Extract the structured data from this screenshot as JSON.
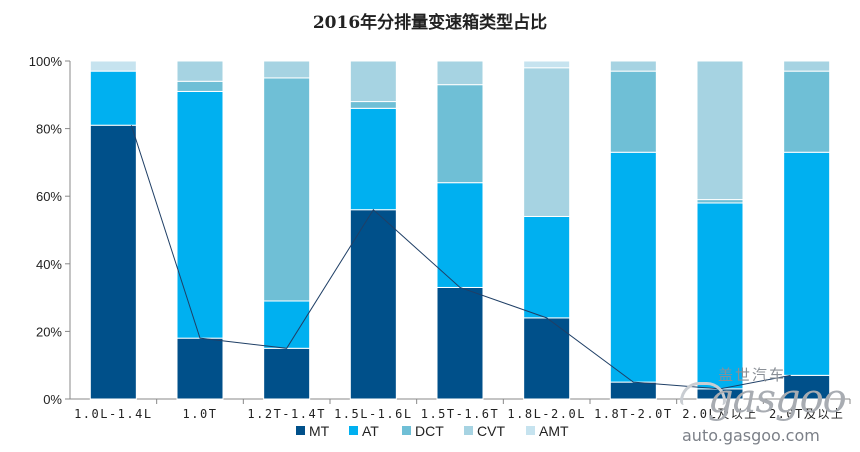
{
  "chart_data": {
    "type": "bar",
    "stacked": true,
    "title": "2016年分排量变速箱类型占比",
    "categories": [
      "1.0L-1.4L",
      "1.0T",
      "1.2T-1.4T",
      "1.5L-1.6L",
      "1.5T-1.6T",
      "1.8L-2.0L",
      "1.8T-2.0T",
      "2.0L及以上",
      "2.0T及以上"
    ],
    "series": [
      {
        "name": "MT",
        "color": "#00508a",
        "values": [
          81,
          18,
          15,
          56,
          33,
          24,
          5,
          3,
          7
        ]
      },
      {
        "name": "AT",
        "color": "#00b0f0",
        "values": [
          16,
          73,
          14,
          30,
          31,
          30,
          68,
          55,
          66
        ]
      },
      {
        "name": "DCT",
        "color": "#6fbfd6",
        "values": [
          0,
          3,
          66,
          2,
          29,
          0,
          24,
          1,
          24
        ]
      },
      {
        "name": "CVT",
        "color": "#a6d3e2",
        "values": [
          0,
          6,
          5,
          12,
          7,
          44,
          3,
          41,
          3
        ]
      },
      {
        "name": "AMT",
        "color": "#c6e3ef",
        "values": [
          3,
          0,
          0,
          0,
          0,
          2,
          0,
          0,
          0
        ]
      }
    ],
    "mt_trend_line": true,
    "yticks": [
      "0%",
      "20%",
      "40%",
      "60%",
      "80%",
      "100%"
    ],
    "ylim": [
      0,
      100
    ],
    "grid": false,
    "legend": "bottom"
  },
  "watermark": {
    "cn": "盖世汽车",
    "logo": "gasgoo",
    "url": "auto.gasgoo.com"
  }
}
